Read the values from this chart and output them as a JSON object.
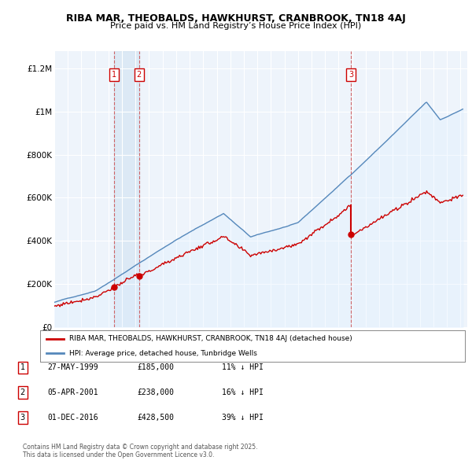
{
  "title": "RIBA MAR, THEOBALDS, HAWKHURST, CRANBROOK, TN18 4AJ",
  "subtitle": "Price paid vs. HM Land Registry’s House Price Index (HPI)",
  "ylabel_ticks": [
    "£0",
    "£200K",
    "£400K",
    "£600K",
    "£800K",
    "£1M",
    "£1.2M"
  ],
  "ytick_values": [
    0,
    200000,
    400000,
    600000,
    800000,
    1000000,
    1200000
  ],
  "ylim": [
    0,
    1280000
  ],
  "xlim_start": 1995.0,
  "xlim_end": 2025.5,
  "sale_color": "#cc0000",
  "hpi_color": "#5588bb",
  "hpi_fill_color": "#ddeeff",
  "vline_color": "#cc4444",
  "sale_dates": [
    1999.41,
    2001.26,
    2016.92
  ],
  "sale_prices": [
    185000,
    238000,
    428500
  ],
  "legend_sale_label": "RIBA MAR, THEOBALDS, HAWKHURST, CRANBROOK, TN18 4AJ (detached house)",
  "legend_hpi_label": "HPI: Average price, detached house, Tunbridge Wells",
  "table_rows": [
    {
      "num": "1",
      "date": "27-MAY-1999",
      "price": "£185,000",
      "pct": "11% ↓ HPI"
    },
    {
      "num": "2",
      "date": "05-APR-2001",
      "price": "£238,000",
      "pct": "16% ↓ HPI"
    },
    {
      "num": "3",
      "date": "01-DEC-2016",
      "price": "£428,500",
      "pct": "39% ↓ HPI"
    }
  ],
  "footnote": "Contains HM Land Registry data © Crown copyright and database right 2025.\nThis data is licensed under the Open Government Licence v3.0.",
  "background_color": "#ffffff",
  "plot_bg_color": "#eef4fb",
  "grid_color": "#ffffff"
}
